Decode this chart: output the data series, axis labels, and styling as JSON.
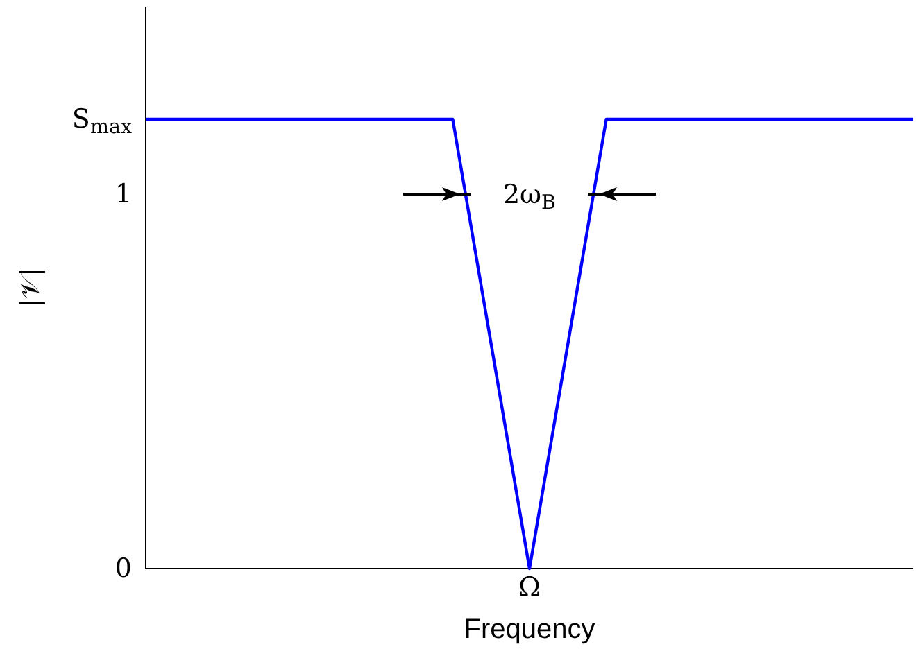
{
  "chart_data": {
    "type": "line",
    "xlabel": "Frequency",
    "ylabel": "|𝒱|",
    "categories": [
      null,
      null,
      null,
      null,
      null,
      "Ω",
      null,
      null,
      null,
      null,
      null
    ],
    "series": [
      {
        "color": "#0000ff",
        "values": [
          1.2,
          1.2,
          1.2,
          1.2,
          1.2,
          0,
          1.2,
          1.2,
          1.2,
          1.2,
          1.2
        ]
      }
    ],
    "ylim": [
      0,
      1.5
    ],
    "yticks": [
      0,
      1,
      {
        "value": 1.2,
        "label": "S$_{max}$"
      }
    ],
    "annotations": [
      "2ω$_{B}$"
    ],
    "marker": "none",
    "line_style": "solid"
  }
}
